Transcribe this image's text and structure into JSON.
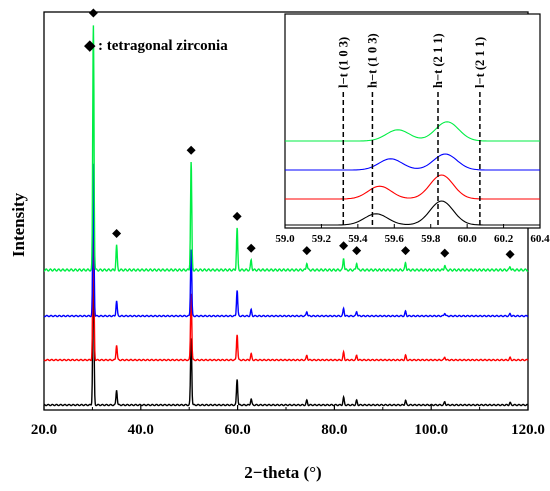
{
  "chart_data": [
    {
      "type": "line",
      "title": "",
      "xlabel": "2−theta (°)",
      "ylabel": "Intensity",
      "xlim": [
        20,
        120
      ],
      "x_ticks": [
        "20.0",
        "40.0",
        "60.0",
        "80.0",
        "100.0",
        "120.0"
      ],
      "y_ticks": [],
      "grid": false,
      "legend": {
        "marker": "◆",
        "text": ": tetragonal zirconia",
        "placement": "top-left"
      },
      "marker_positions_2theta": [
        30.2,
        35.0,
        50.4,
        59.9,
        62.8,
        74.3,
        81.9,
        84.6,
        94.7,
        102.8,
        116.3
      ],
      "peaks": [
        {
          "x": 30.2,
          "height": 1.0
        },
        {
          "x": 35.0,
          "height": 0.1
        },
        {
          "x": 50.4,
          "height": 0.44
        },
        {
          "x": 59.9,
          "height": 0.17
        },
        {
          "x": 62.8,
          "height": 0.04
        },
        {
          "x": 74.3,
          "height": 0.03
        },
        {
          "x": 81.9,
          "height": 0.05
        },
        {
          "x": 84.6,
          "height": 0.03
        },
        {
          "x": 94.7,
          "height": 0.03
        },
        {
          "x": 102.8,
          "height": 0.02
        },
        {
          "x": 116.3,
          "height": 0.015
        }
      ],
      "series": [
        {
          "color": "#000000",
          "offset": 0
        },
        {
          "color": "#ff0000",
          "offset": 1
        },
        {
          "color": "#0000ff",
          "offset": 2
        },
        {
          "color": "#00ee44",
          "offset": 3
        }
      ]
    },
    {
      "type": "line",
      "title": "",
      "xlim": [
        59.0,
        60.4
      ],
      "x_ticks": [
        "59.0",
        "59.2",
        "59.4",
        "59.6",
        "59.8",
        "60.0",
        "60.2",
        "60.4"
      ],
      "reference_lines": [
        {
          "x": 59.32,
          "label": "l−t (1 0 3)"
        },
        {
          "x": 59.48,
          "label": "h−t (1 0 3)"
        },
        {
          "x": 59.84,
          "label": "h−t (2 1 1)"
        },
        {
          "x": 60.07,
          "label": "l−t (2 1 1)"
        }
      ],
      "series": [
        {
          "color": "#000000",
          "offset": 0,
          "peaks": [
            {
              "x": 59.5,
              "height": 0.35
            },
            {
              "x": 59.86,
              "height": 0.75
            }
          ]
        },
        {
          "color": "#ff0000",
          "offset": 1,
          "peaks": [
            {
              "x": 59.52,
              "height": 0.4
            },
            {
              "x": 59.86,
              "height": 0.75
            }
          ]
        },
        {
          "color": "#0000ff",
          "offset": 2,
          "peaks": [
            {
              "x": 59.58,
              "height": 0.35
            },
            {
              "x": 59.88,
              "height": 0.5
            }
          ]
        },
        {
          "color": "#00ee44",
          "offset": 3,
          "peaks": [
            {
              "x": 59.62,
              "height": 0.35
            },
            {
              "x": 59.89,
              "height": 0.6
            }
          ]
        }
      ]
    }
  ]
}
